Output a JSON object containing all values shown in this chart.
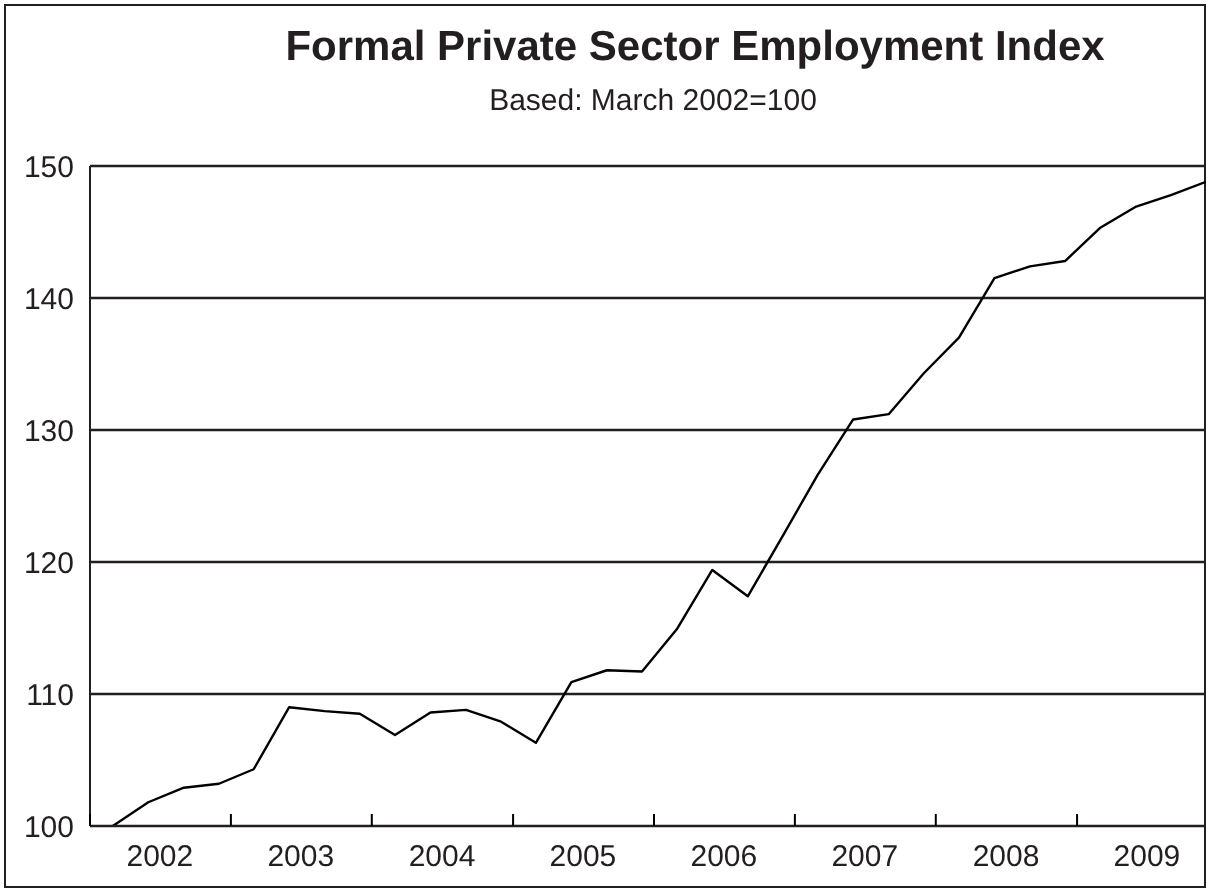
{
  "chart_data": {
    "type": "line",
    "title": "Formal Private Sector Employment Index",
    "subtitle": "Based: March 2002=100",
    "x": [
      "2002-03",
      "2002-06",
      "2002-09",
      "2002-12",
      "2003-03",
      "2003-06",
      "2003-09",
      "2003-12",
      "2004-03",
      "2004-06",
      "2004-09",
      "2004-12",
      "2005-03",
      "2005-06",
      "2005-09",
      "2005-12",
      "2006-03",
      "2006-06",
      "2006-09",
      "2006-12",
      "2007-03",
      "2007-06",
      "2007-09",
      "2007-12",
      "2008-03",
      "2008-06",
      "2008-09",
      "2008-12",
      "2009-03",
      "2009-06",
      "2009-09",
      "2009-12"
    ],
    "series": [
      {
        "color": "#000000",
        "values": [
          100.0,
          101.8,
          102.9,
          103.2,
          104.3,
          109.0,
          108.7,
          108.5,
          106.9,
          108.6,
          108.8,
          107.9,
          106.3,
          110.9,
          111.8,
          111.7,
          114.9,
          119.4,
          117.4,
          122.0,
          126.6,
          130.8,
          131.2,
          134.3,
          137.0,
          141.5,
          142.4,
          142.8,
          145.3,
          146.9,
          147.8,
          148.8
        ]
      }
    ],
    "xlim": [
      "2002-01",
      "2009-12"
    ],
    "xticks": [
      {
        "value": "2002-01",
        "label": null
      },
      {
        "value": "2002-07",
        "label": "2002"
      },
      {
        "value": "2003-01",
        "label": null
      },
      {
        "value": "2003-07",
        "label": "2003"
      },
      {
        "value": "2004-01",
        "label": null
      },
      {
        "value": "2004-07",
        "label": "2004"
      },
      {
        "value": "2005-01",
        "label": null
      },
      {
        "value": "2005-07",
        "label": "2005"
      },
      {
        "value": "2006-01",
        "label": null
      },
      {
        "value": "2006-07",
        "label": "2006"
      },
      {
        "value": "2007-01",
        "label": null
      },
      {
        "value": "2007-07",
        "label": "2007"
      },
      {
        "value": "2008-01",
        "label": null
      },
      {
        "value": "2008-07",
        "label": "2008"
      },
      {
        "value": "2009-01",
        "label": null
      },
      {
        "value": "2009-07",
        "label": "2009"
      }
    ],
    "ylim": [
      100,
      150
    ],
    "yticks": [
      100,
      110,
      120,
      130,
      140,
      150
    ],
    "grid": "y",
    "legend": false,
    "marker": "none",
    "line_style": "solid"
  }
}
